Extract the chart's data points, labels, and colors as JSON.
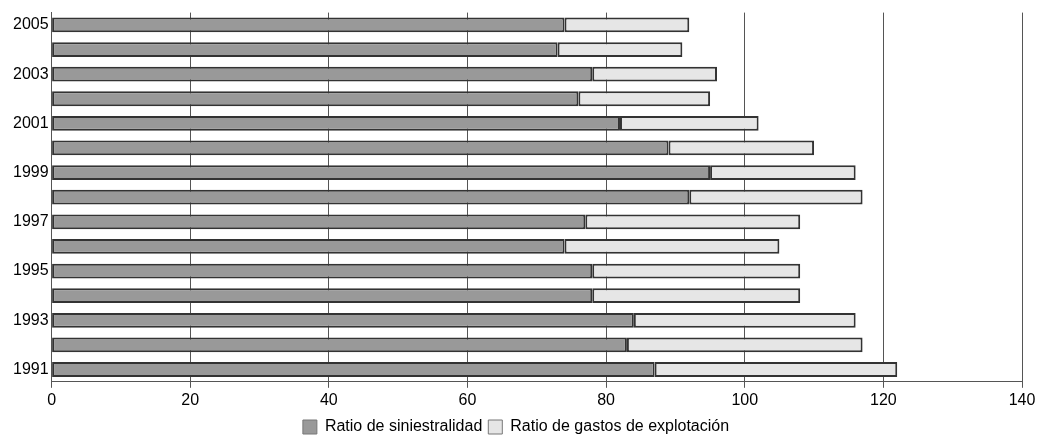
{
  "chart_data": {
    "type": "bar",
    "orientation": "horizontal",
    "stacked": true,
    "categories": [
      "2005",
      null,
      "2003",
      null,
      "2001",
      null,
      "1999",
      null,
      "1997",
      null,
      "1995",
      null,
      "1993",
      null,
      "1991"
    ],
    "series": [
      {
        "name": "Ratio de siniestralidad",
        "color": "#999999",
        "values": [
          74,
          73,
          78,
          76,
          82,
          89,
          95,
          92,
          77,
          74,
          78,
          78,
          84,
          83,
          87
        ]
      },
      {
        "name": "Ratio de gastos de explotación",
        "color": "#e6e6e6",
        "values": [
          18,
          18,
          18,
          19,
          20,
          21,
          21,
          25,
          31,
          31,
          30,
          30,
          32,
          34,
          35
        ]
      }
    ],
    "xlim": [
      0,
      140
    ],
    "xticks": [
      0,
      20,
      40,
      60,
      80,
      100,
      120,
      140
    ],
    "grid": "x",
    "legend": "bottom"
  }
}
